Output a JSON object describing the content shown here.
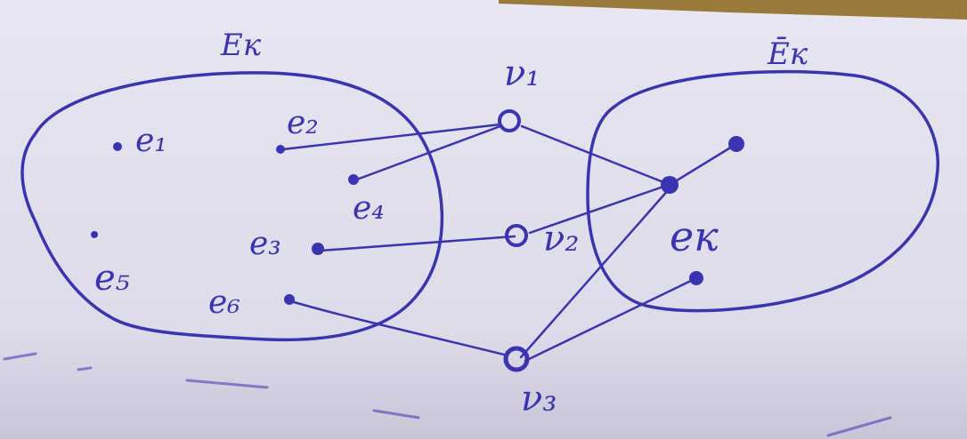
{
  "colors": {
    "ink": "#3b34b0",
    "paper": "#e4e2f0",
    "paper_shadow": "#b9b4c9",
    "wood": "#9a7a3a"
  },
  "sets": {
    "left": "Eк",
    "right": "Ēк"
  },
  "vertices": {
    "v1": "ν₁",
    "v2": "ν₂",
    "v3": "ν₃"
  },
  "elements": {
    "e1": "e₁",
    "e2": "e₂",
    "e3": "e₃",
    "e4": "e₄",
    "e5": "e₅",
    "e6": "e₆",
    "ek": "eк"
  }
}
